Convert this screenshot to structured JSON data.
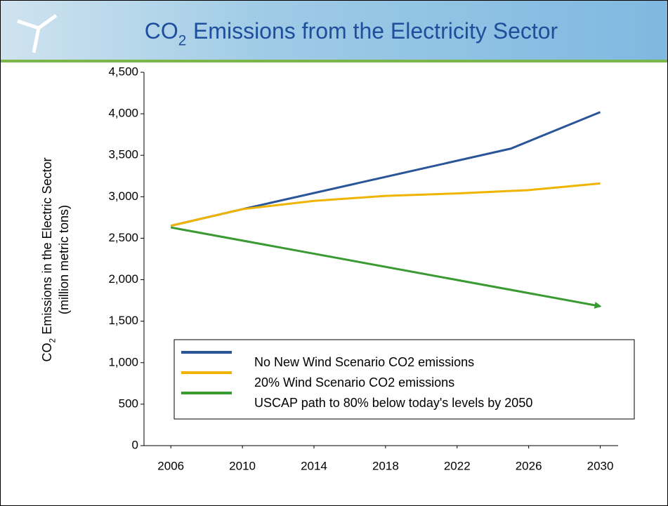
{
  "chart_data": {
    "type": "line",
    "title": {
      "main": "CO",
      "sub": "2",
      "rest": "Emissions from the Electricity Sector"
    },
    "y_label": {
      "main": "CO",
      "sub": "2",
      "rest": "Emissions in the Electric Sector",
      "line2": "(million metric tons)"
    },
    "xlim": [
      2004.5,
      2031
    ],
    "xticks": [
      2006,
      2010,
      2014,
      2018,
      2022,
      2026,
      2030
    ],
    "ylim": [
      0,
      4500
    ],
    "yticks": [
      0,
      500,
      {
        "value": 1000,
        "label": "1,000"
      },
      {
        "value": 1500,
        "label": "1,500"
      },
      {
        "value": 2000,
        "label": "2,000"
      },
      {
        "value": 2500,
        "label": "2,500"
      },
      {
        "value": 3000,
        "label": "3,000"
      },
      {
        "value": 3500,
        "label": "3,500"
      },
      {
        "value": 4000,
        "label": "4,000"
      },
      {
        "value": 4500,
        "label": "4,500"
      }
    ],
    "series": [
      {
        "name": "No New Wind Scenario CO2 emissions",
        "color": "#2a5597",
        "x": [
          2006,
          2010,
          2025,
          2030
        ],
        "values": [
          2650,
          2850,
          3580,
          4020
        ]
      },
      {
        "name": "20% Wind Scenario CO2 emissions",
        "color": "#f0b400",
        "x": [
          2006,
          2010,
          2014,
          2018,
          2022,
          2026,
          2030
        ],
        "values": [
          2650,
          2850,
          2950,
          3010,
          3040,
          3080,
          3160
        ]
      },
      {
        "name": "USCAP path to 80% below today's levels by 2050",
        "color": "#3a9a32",
        "x": [
          2006,
          2030
        ],
        "values": [
          2630,
          1680
        ],
        "arrow": true
      }
    ]
  }
}
